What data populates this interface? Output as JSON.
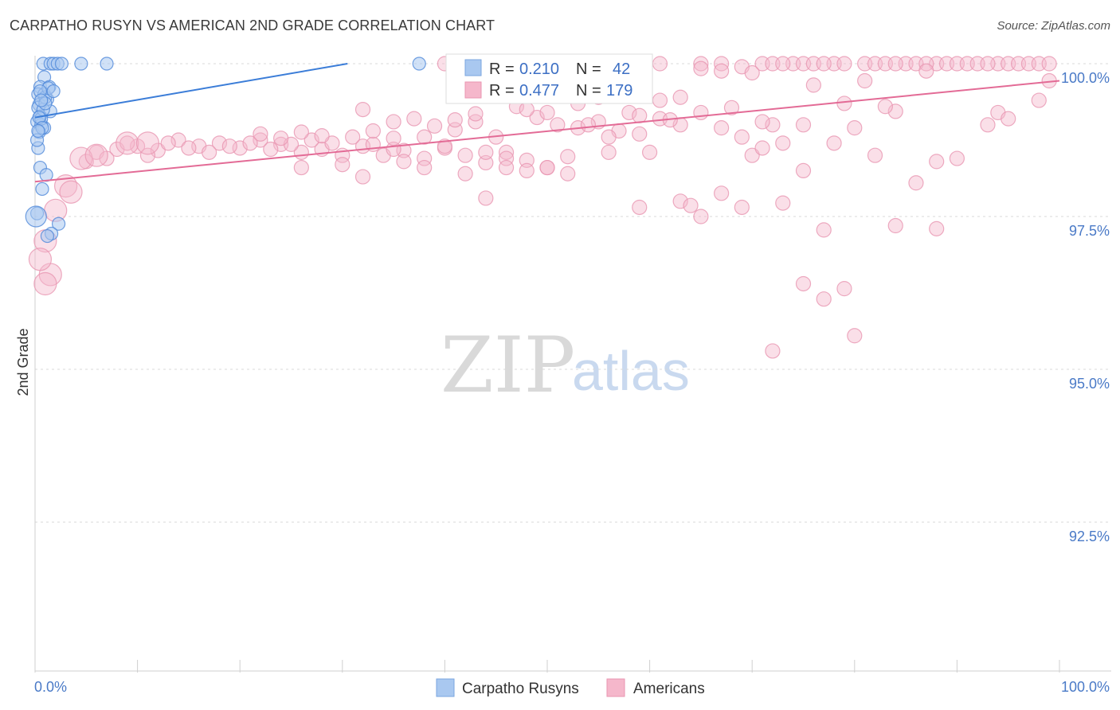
{
  "header": {
    "title": "CARPATHO RUSYN VS AMERICAN 2ND GRADE CORRELATION CHART",
    "source": "Source: ZipAtlas.com"
  },
  "watermark": {
    "zip": "ZIP",
    "atlas": "atlas"
  },
  "colors": {
    "blue": "#3b7dd8",
    "blue_fill": "#a9c8f0",
    "pink": "#e36b96",
    "pink_fill": "#f5b7cb",
    "grid": "#d8d8d8",
    "tick_text": "#4a7ac7"
  },
  "chart_data": {
    "type": "scatter",
    "title": "CARPATHO RUSYN VS AMERICAN 2ND GRADE CORRELATION CHART",
    "xlabel": "",
    "ylabel": "2nd Grade",
    "xlim": [
      0,
      100
    ],
    "ylim": [
      90.0,
      100.45
    ],
    "x_tick_labels": [
      "0.0%",
      "100.0%"
    ],
    "y_ticks": [
      {
        "value": 100.0,
        "label": "100.0%"
      },
      {
        "value": 97.5,
        "label": "97.5%"
      },
      {
        "value": 95.0,
        "label": "95.0%"
      },
      {
        "value": 92.5,
        "label": "92.5%"
      }
    ],
    "legend_stats": [
      {
        "r_label": "R =",
        "r": "0.210",
        "n_label": "N =",
        "n": "42"
      },
      {
        "r_label": "R =",
        "r": "0.477",
        "n_label": "N =",
        "n": "179"
      }
    ],
    "series": [
      {
        "name": "Carpatho Rusyns",
        "color": "#3b7dd8",
        "r": 0.21,
        "n": 42,
        "trend": {
          "x": [
            0,
            30.5
          ],
          "y": [
            99.12,
            100.0
          ]
        },
        "points": [
          [
            0.8,
            100
          ],
          [
            1.5,
            100
          ],
          [
            1.8,
            100
          ],
          [
            2.2,
            100
          ],
          [
            2.6,
            100
          ],
          [
            4.5,
            100
          ],
          [
            7,
            100
          ],
          [
            37.5,
            100
          ],
          [
            0.9,
            99.78
          ],
          [
            0.5,
            99.62
          ],
          [
            1.4,
            99.62
          ],
          [
            0.3,
            99.5
          ],
          [
            0.9,
            99.5
          ],
          [
            1.2,
            99.42
          ],
          [
            0.4,
            99.33
          ],
          [
            0.3,
            99.28
          ],
          [
            1.5,
            99.22
          ],
          [
            0.5,
            99.14
          ],
          [
            0.2,
            99.05
          ],
          [
            0.6,
            99.0
          ],
          [
            0.9,
            98.95
          ],
          [
            0.4,
            98.88
          ],
          [
            0.3,
            98.62
          ],
          [
            0.5,
            98.3
          ],
          [
            1.1,
            98.18
          ],
          [
            0.7,
            97.95
          ],
          [
            0.2,
            97.55
          ],
          [
            2.3,
            97.38
          ],
          [
            1.6,
            97.22
          ],
          [
            1.2,
            97.18
          ],
          [
            0.6,
            99.1
          ],
          [
            0.8,
            99.25
          ],
          [
            1.0,
            99.45
          ],
          [
            1.3,
            99.6
          ],
          [
            0.4,
            99.12
          ],
          [
            0.7,
            98.95
          ],
          [
            0.2,
            98.75
          ],
          [
            1.0,
            99.35
          ],
          [
            0.5,
            99.55
          ],
          [
            1.8,
            99.55
          ],
          [
            0.3,
            98.9
          ],
          [
            0.6,
            99.4
          ]
        ],
        "big_points": [
          [
            0.1,
            97.5
          ]
        ]
      },
      {
        "name": "Americans",
        "color": "#e36b96",
        "r": 0.477,
        "n": 179,
        "trend": {
          "x": [
            0,
            100
          ],
          "y": [
            98.07,
            99.72
          ]
        },
        "points": [
          [
            40,
            100
          ],
          [
            43,
            100
          ],
          [
            49,
            100
          ],
          [
            54,
            100
          ],
          [
            56,
            100
          ],
          [
            61,
            100
          ],
          [
            65,
            100
          ],
          [
            67,
            100
          ],
          [
            71,
            100
          ],
          [
            72,
            100
          ],
          [
            74,
            100
          ],
          [
            75,
            100
          ],
          [
            76,
            100
          ],
          [
            78,
            100
          ],
          [
            79,
            100
          ],
          [
            81,
            100
          ],
          [
            82,
            100
          ],
          [
            83,
            100
          ],
          [
            85,
            100
          ],
          [
            86,
            100
          ],
          [
            88,
            100
          ],
          [
            89,
            100
          ],
          [
            90,
            100
          ],
          [
            91,
            100
          ],
          [
            92,
            100
          ],
          [
            94,
            100
          ],
          [
            95,
            100
          ],
          [
            96,
            100
          ],
          [
            97,
            100
          ],
          [
            98,
            100
          ],
          [
            73,
            100
          ],
          [
            77,
            100
          ],
          [
            84,
            100
          ],
          [
            87,
            100
          ],
          [
            93,
            100
          ],
          [
            99,
            100
          ],
          [
            56,
            99.6
          ],
          [
            58,
            99.78
          ],
          [
            59,
            99.85
          ],
          [
            65,
            99.92
          ],
          [
            67,
            99.88
          ],
          [
            69,
            99.95
          ],
          [
            70,
            99.85
          ],
          [
            76,
            99.65
          ],
          [
            81,
            99.72
          ],
          [
            87,
            99.88
          ],
          [
            53,
            99.35
          ],
          [
            55,
            99.45
          ],
          [
            58,
            99.2
          ],
          [
            61,
            99.4
          ],
          [
            63,
            99.45
          ],
          [
            68,
            99.28
          ],
          [
            72,
            99.0
          ],
          [
            79,
            99.35
          ],
          [
            84,
            99.22
          ],
          [
            99,
            99.72
          ],
          [
            37,
            99.1
          ],
          [
            39,
            98.98
          ],
          [
            41,
            98.92
          ],
          [
            43,
            99.05
          ],
          [
            45,
            98.8
          ],
          [
            47,
            99.3
          ],
          [
            49,
            99.12
          ],
          [
            51,
            99.0
          ],
          [
            53,
            98.95
          ],
          [
            55,
            99.05
          ],
          [
            57,
            98.9
          ],
          [
            59,
            98.85
          ],
          [
            61,
            99.1
          ],
          [
            63,
            99.0
          ],
          [
            65,
            99.2
          ],
          [
            67,
            98.95
          ],
          [
            69,
            98.8
          ],
          [
            71,
            99.05
          ],
          [
            73,
            98.7
          ],
          [
            75,
            99.0
          ],
          [
            14,
            98.75
          ],
          [
            16,
            98.65
          ],
          [
            18,
            98.7
          ],
          [
            20,
            98.62
          ],
          [
            22,
            98.75
          ],
          [
            24,
            98.68
          ],
          [
            26,
            98.55
          ],
          [
            28,
            98.6
          ],
          [
            30,
            98.5
          ],
          [
            32,
            98.65
          ],
          [
            34,
            98.5
          ],
          [
            36,
            98.58
          ],
          [
            38,
            98.45
          ],
          [
            40,
            98.62
          ],
          [
            42,
            98.5
          ],
          [
            44,
            98.38
          ],
          [
            46,
            98.55
          ],
          [
            48,
            98.42
          ],
          [
            50,
            98.3
          ],
          [
            52,
            98.48
          ],
          [
            6,
            98.55
          ],
          [
            8,
            98.6
          ],
          [
            10,
            98.65
          ],
          [
            12,
            98.58
          ],
          [
            13,
            98.7
          ],
          [
            15,
            98.62
          ],
          [
            17,
            98.55
          ],
          [
            19,
            98.65
          ],
          [
            21,
            98.7
          ],
          [
            23,
            98.6
          ],
          [
            25,
            98.68
          ],
          [
            27,
            98.75
          ],
          [
            29,
            98.7
          ],
          [
            31,
            98.8
          ],
          [
            33,
            98.68
          ],
          [
            35,
            98.6
          ],
          [
            9,
            98.7
          ],
          [
            11,
            98.5
          ],
          [
            7,
            98.45
          ],
          [
            5,
            98.4
          ],
          [
            22,
            98.85
          ],
          [
            24,
            98.78
          ],
          [
            26,
            98.88
          ],
          [
            28,
            98.82
          ],
          [
            33,
            98.9
          ],
          [
            35,
            98.78
          ],
          [
            41,
            99.08
          ],
          [
            43,
            99.18
          ],
          [
            48,
            99.25
          ],
          [
            50,
            99.2
          ],
          [
            26,
            98.3
          ],
          [
            30,
            98.35
          ],
          [
            32,
            98.15
          ],
          [
            36,
            98.4
          ],
          [
            38,
            98.3
          ],
          [
            42,
            98.2
          ],
          [
            44,
            97.8
          ],
          [
            46,
            98.45
          ],
          [
            48,
            98.25
          ],
          [
            50,
            98.3
          ],
          [
            52,
            98.2
          ],
          [
            56,
            98.55
          ],
          [
            59,
            97.65
          ],
          [
            60,
            98.55
          ],
          [
            63,
            97.75
          ],
          [
            64,
            97.68
          ],
          [
            65,
            97.5
          ],
          [
            67,
            97.88
          ],
          [
            69,
            97.65
          ],
          [
            70,
            98.5
          ],
          [
            71,
            98.62
          ],
          [
            73,
            97.72
          ],
          [
            75,
            98.25
          ],
          [
            77,
            97.28
          ],
          [
            78,
            98.7
          ],
          [
            80,
            98.95
          ],
          [
            82,
            98.5
          ],
          [
            84,
            97.35
          ],
          [
            86,
            98.05
          ],
          [
            88,
            98.4
          ],
          [
            32,
            99.25
          ],
          [
            35,
            99.05
          ],
          [
            38,
            98.8
          ],
          [
            40,
            98.65
          ],
          [
            44,
            98.55
          ],
          [
            46,
            98.3
          ],
          [
            54,
            99.0
          ],
          [
            56,
            98.8
          ],
          [
            59,
            99.15
          ],
          [
            62,
            99.08
          ],
          [
            75,
            96.4
          ],
          [
            77,
            96.15
          ],
          [
            79,
            96.32
          ],
          [
            83,
            99.3
          ],
          [
            90,
            98.45
          ],
          [
            93,
            99.0
          ],
          [
            94,
            99.2
          ],
          [
            95,
            99.1
          ],
          [
            98,
            99.4
          ],
          [
            72,
            95.3
          ],
          [
            80,
            95.55
          ],
          [
            88,
            97.3
          ]
        ],
        "big_points": [
          [
            1,
            97.1
          ],
          [
            1.5,
            96.55
          ],
          [
            2,
            97.6
          ],
          [
            3,
            98.0
          ],
          [
            3.5,
            97.9
          ],
          [
            4.5,
            98.45
          ],
          [
            6,
            98.5
          ],
          [
            9,
            98.7
          ],
          [
            11,
            98.7
          ],
          [
            0.5,
            96.8
          ],
          [
            1,
            96.4
          ]
        ]
      }
    ]
  },
  "bottom_legend": {
    "items": [
      {
        "label": "Carpatho Rusyns"
      },
      {
        "label": "Americans"
      }
    ]
  }
}
